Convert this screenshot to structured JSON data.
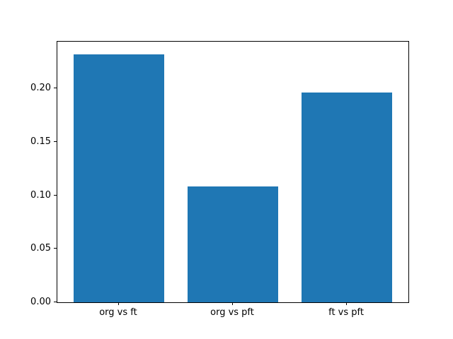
{
  "chart_data": {
    "type": "bar",
    "title": "",
    "xlabel": "",
    "ylabel": "",
    "categories": [
      "org vs ft",
      "org vs pft",
      "ft vs pft"
    ],
    "values": [
      0.232,
      0.108,
      0.196
    ],
    "bar_color": "#1f77b4",
    "axis_color": "#000000",
    "background": "#ffffff",
    "ylim": [
      0,
      0.2436
    ],
    "xlim": [
      -0.54,
      2.54
    ],
    "bar_width": 0.8,
    "yticks": [
      0.0,
      0.05,
      0.1,
      0.15,
      0.2
    ],
    "ytick_labels": [
      "0.00",
      "0.05",
      "0.10",
      "0.15",
      "0.20"
    ],
    "grid": false,
    "legend": null
  }
}
